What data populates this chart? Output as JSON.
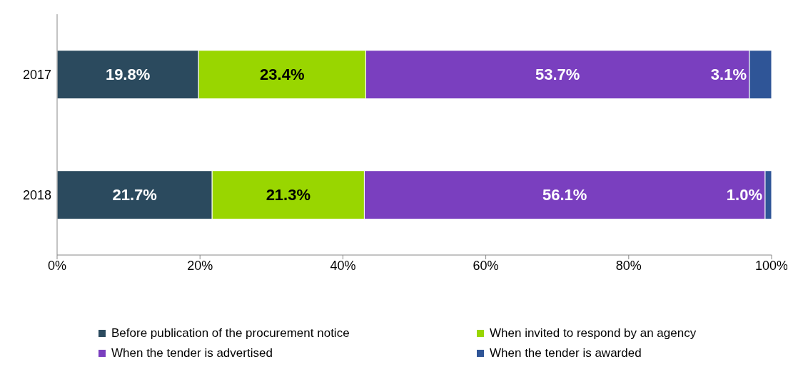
{
  "chart_data": {
    "type": "bar",
    "orientation": "horizontal",
    "stacked": true,
    "categories": [
      "2017",
      "2018"
    ],
    "series": [
      {
        "name": "Before publication of the procurement notice",
        "color": "#2b4a5e",
        "values": [
          19.8,
          21.7
        ],
        "value_labels": [
          "19.8%",
          "21.7%"
        ]
      },
      {
        "name": "When invited to respond by an agency",
        "color": "#99d600",
        "values": [
          23.4,
          21.3
        ],
        "value_labels": [
          "23.4%",
          "21.3%"
        ]
      },
      {
        "name": "When the tender is advertised",
        "color": "#7a3fbf",
        "values": [
          53.7,
          56.1
        ],
        "value_labels": [
          "53.7%",
          "56.1%"
        ]
      },
      {
        "name": "When the tender is awarded",
        "color": "#2f5597",
        "values": [
          3.1,
          1.0
        ],
        "value_labels": [
          "3.1%",
          "1.0%"
        ]
      }
    ],
    "xlim": [
      0,
      100
    ],
    "xticks": [
      {
        "value": 0,
        "label": "0%"
      },
      {
        "value": 20,
        "label": "20%"
      },
      {
        "value": 40,
        "label": "40%"
      },
      {
        "value": 60,
        "label": "60%"
      },
      {
        "value": 80,
        "label": "80%"
      },
      {
        "value": 100,
        "label": "100%"
      }
    ],
    "grid": false,
    "legend": "bottom"
  }
}
